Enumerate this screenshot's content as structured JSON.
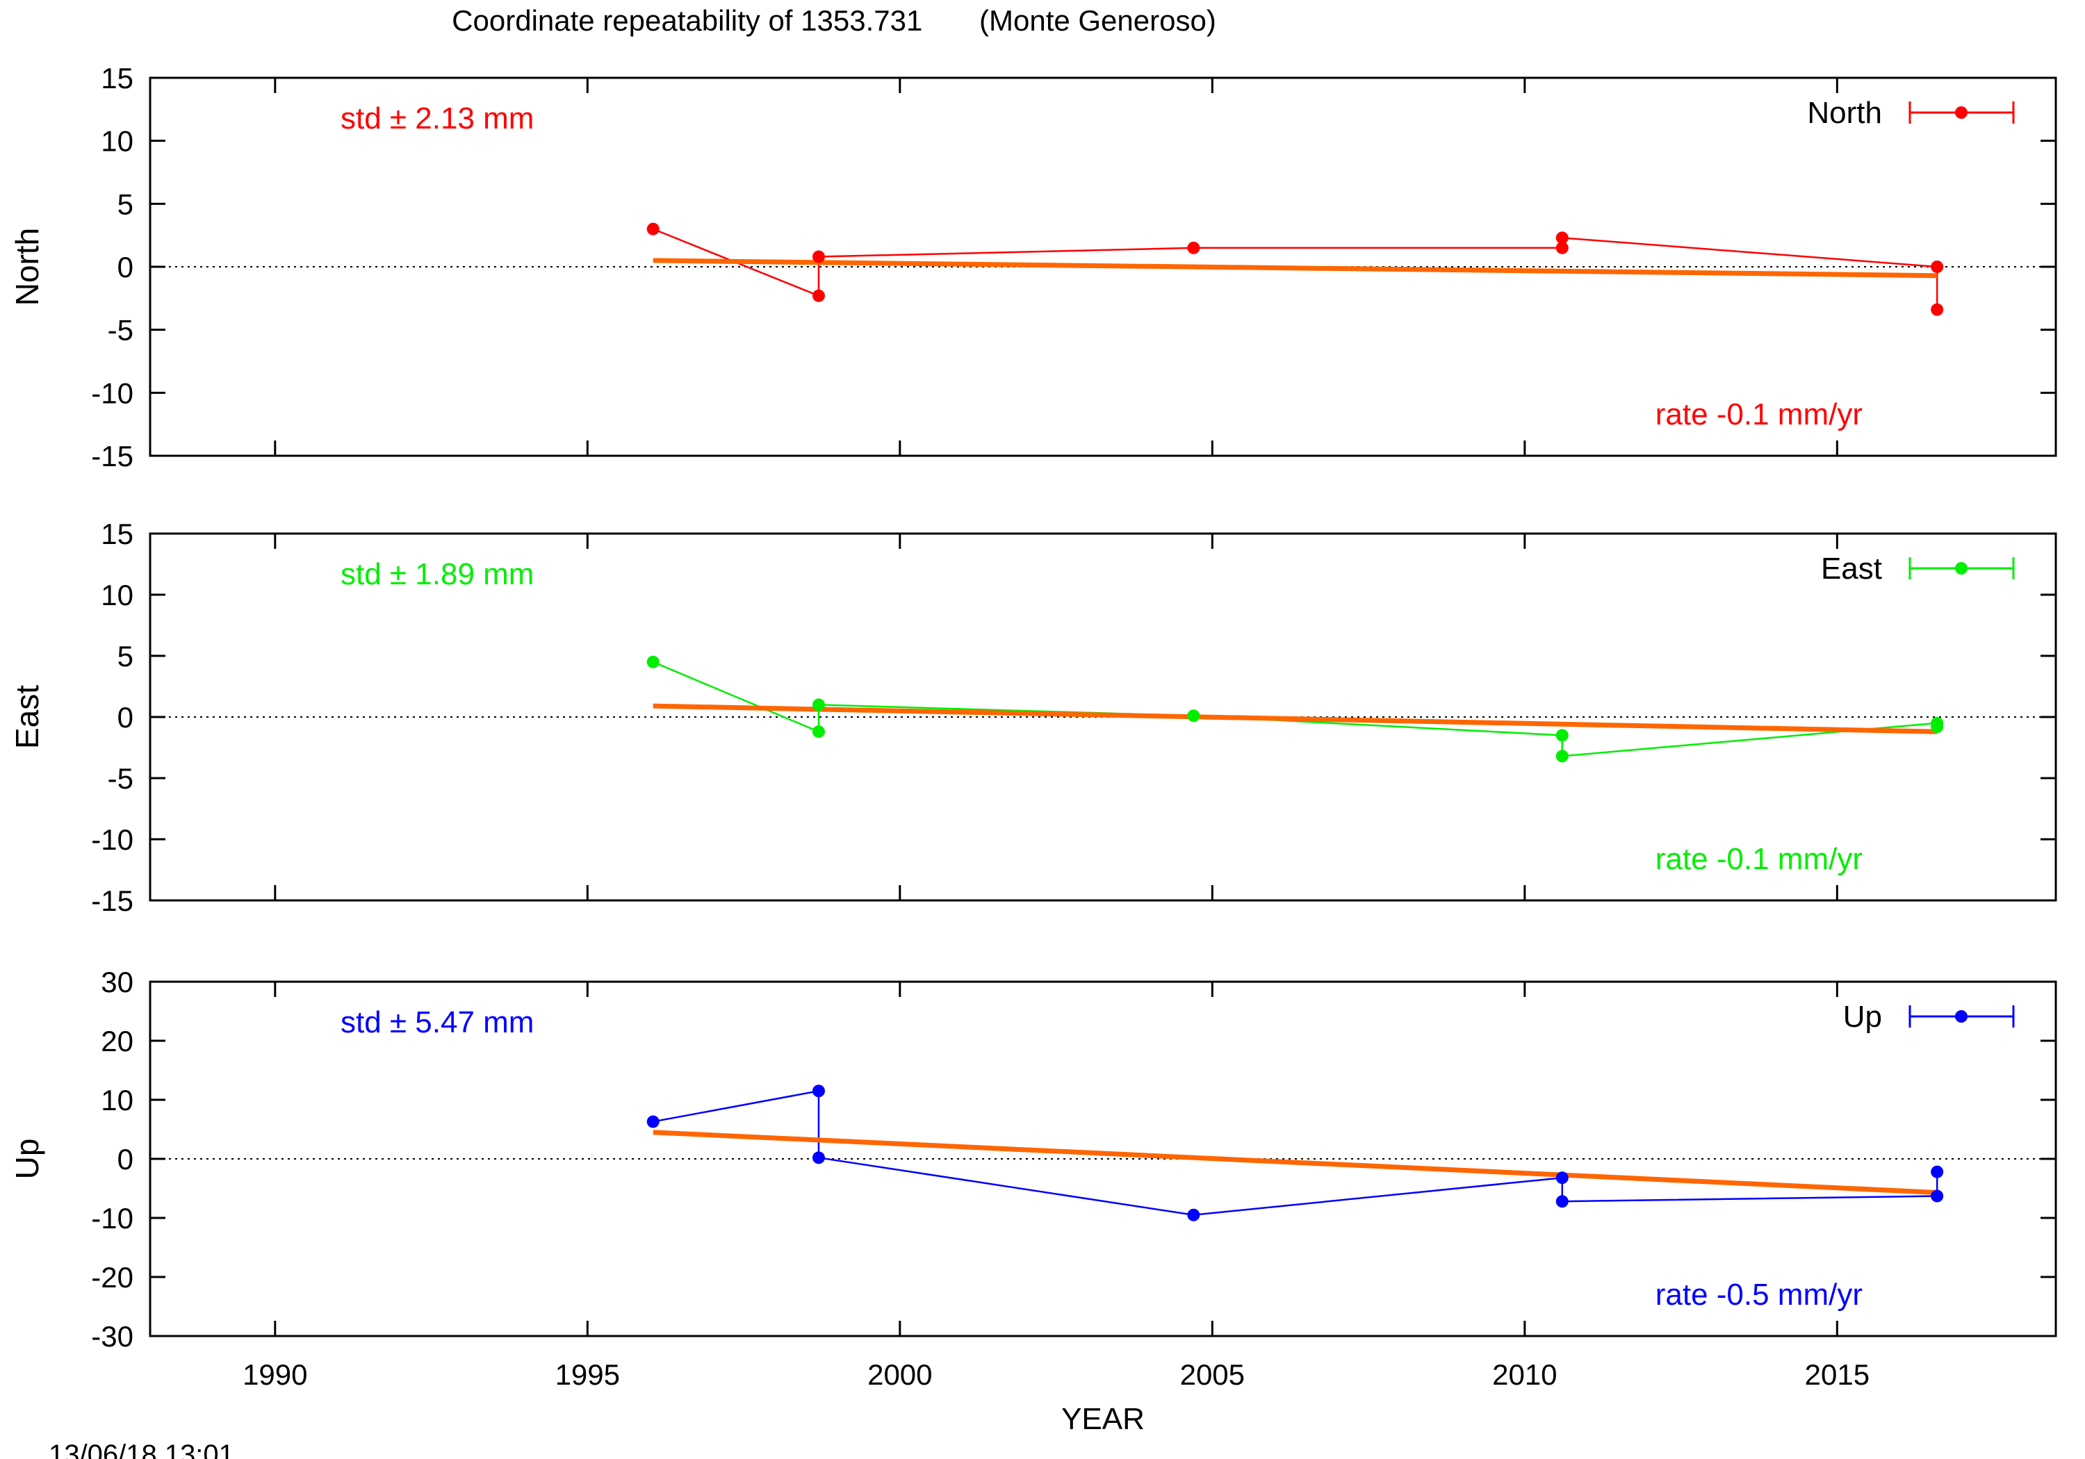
{
  "title": "Coordinate repeatability of 1353.731       (Monte Generoso)",
  "timestamp": "13/06/18 13:01",
  "chart_data": {
    "type": "line",
    "xlabel": "YEAR",
    "xlim": [
      1988,
      2018.5
    ],
    "xticks": [
      1990,
      1995,
      2000,
      2005,
      2010,
      2015
    ],
    "fit_color": "#ff6600",
    "panels": [
      {
        "name": "North",
        "ylabel": "North",
        "ylim": [
          -15,
          15
        ],
        "yticks": [
          15,
          10,
          5,
          0,
          -5,
          -10,
          -15
        ],
        "color": "#ff0000",
        "std_text": "std ± 2.13 mm",
        "rate_text": "rate -0.1 mm/yr",
        "legend_label": "North",
        "x": [
          1996.05,
          1998.7,
          1998.7,
          2004.7,
          2010.6,
          2010.6,
          2016.6,
          2016.6
        ],
        "y": [
          3.0,
          -2.3,
          0.8,
          1.5,
          1.5,
          2.3,
          0.0,
          -3.4
        ],
        "fit": {
          "x": [
            1996.05,
            2016.6
          ],
          "y": [
            0.5,
            -0.7
          ]
        }
      },
      {
        "name": "East",
        "ylabel": "East",
        "ylim": [
          -15,
          15
        ],
        "yticks": [
          15,
          10,
          5,
          0,
          -5,
          -10,
          -15
        ],
        "color": "#00ee00",
        "std_text": "std ± 1.89 mm",
        "rate_text": "rate -0.1 mm/yr",
        "legend_label": "East",
        "x": [
          1996.05,
          1998.7,
          1998.7,
          2004.7,
          2010.6,
          2010.6,
          2016.6,
          2016.6
        ],
        "y": [
          4.5,
          -1.2,
          1.0,
          0.1,
          -1.5,
          -3.2,
          -0.5,
          -0.8
        ],
        "fit": {
          "x": [
            1996.05,
            2016.6
          ],
          "y": [
            0.9,
            -1.2
          ]
        }
      },
      {
        "name": "Up",
        "ylabel": "Up",
        "ylim": [
          -30,
          30
        ],
        "yticks": [
          30,
          20,
          10,
          0,
          -10,
          -20,
          -30
        ],
        "color": "#0000ff",
        "std_text": "std ± 5.47 mm",
        "rate_text": "rate -0.5 mm/yr",
        "legend_label": "Up",
        "x": [
          1996.05,
          1998.7,
          1998.7,
          2004.7,
          2010.6,
          2010.6,
          2016.6,
          2016.6
        ],
        "y": [
          6.3,
          11.5,
          0.2,
          -9.5,
          -3.2,
          -7.2,
          -6.3,
          -2.2
        ],
        "fit": {
          "x": [
            1996.05,
            2016.6
          ],
          "y": [
            4.5,
            -5.7
          ]
        }
      }
    ]
  }
}
